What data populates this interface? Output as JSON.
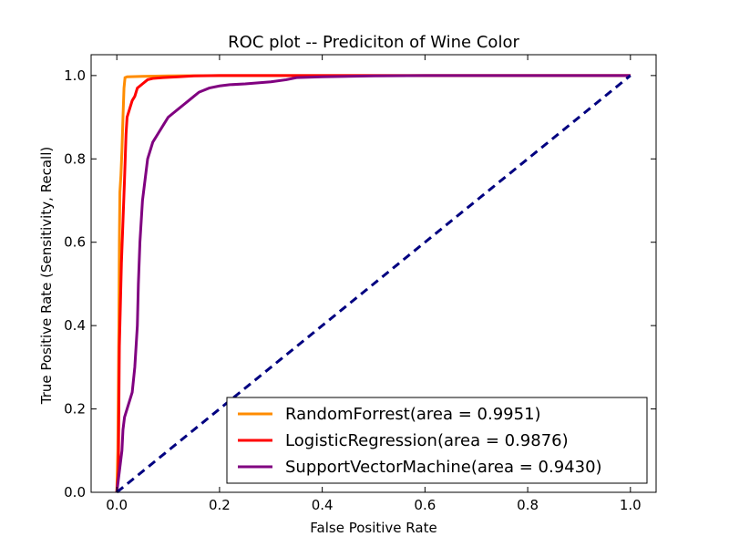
{
  "chart_data": {
    "type": "line",
    "title": "ROC plot -- Prediciton of Wine Color",
    "xlabel": "False Positive Rate",
    "ylabel": "True Positive Rate (Sensitivity, Recall)",
    "xlim": [
      -0.05,
      1.05
    ],
    "ylim": [
      0.0,
      1.05
    ],
    "xticks": [
      "0.0",
      "0.2",
      "0.4",
      "0.6",
      "0.8",
      "1.0"
    ],
    "yticks": [
      "0.0",
      "0.2",
      "0.4",
      "0.6",
      "0.8",
      "1.0"
    ],
    "grid": false,
    "legend_position": "lower-right",
    "series": [
      {
        "name": "RandomForrest(area = 0.9951)",
        "color": "#ff8c00",
        "style": "solid",
        "x": [
          0.0,
          0.002,
          0.004,
          0.005,
          0.006,
          0.008,
          0.01,
          0.012,
          0.014,
          0.016,
          0.02,
          0.05,
          0.1,
          0.2,
          0.4,
          1.0
        ],
        "y": [
          0.0,
          0.1,
          0.4,
          0.6,
          0.72,
          0.76,
          0.82,
          0.9,
          0.97,
          0.995,
          0.997,
          0.998,
          0.999,
          1.0,
          1.0,
          1.0
        ]
      },
      {
        "name": "LogisticRegression(area = 0.9876)",
        "color": "#ff0000",
        "style": "solid",
        "x": [
          0.0,
          0.003,
          0.005,
          0.007,
          0.009,
          0.012,
          0.015,
          0.018,
          0.02,
          0.025,
          0.03,
          0.035,
          0.04,
          0.05,
          0.06,
          0.07,
          0.09,
          0.12,
          0.15,
          0.2,
          0.3,
          0.4,
          0.6,
          1.0
        ],
        "y": [
          0.0,
          0.05,
          0.35,
          0.45,
          0.55,
          0.65,
          0.75,
          0.86,
          0.9,
          0.92,
          0.94,
          0.95,
          0.97,
          0.98,
          0.99,
          0.993,
          0.995,
          0.997,
          0.999,
          1.0,
          1.0,
          1.0,
          1.0,
          1.0
        ]
      },
      {
        "name": "SupportVectorMachine(area = 0.9430)",
        "color": "#800080",
        "style": "solid",
        "x": [
          0.0,
          0.005,
          0.01,
          0.012,
          0.015,
          0.02,
          0.025,
          0.03,
          0.035,
          0.04,
          0.042,
          0.045,
          0.05,
          0.055,
          0.06,
          0.065,
          0.07,
          0.075,
          0.08,
          0.09,
          0.1,
          0.11,
          0.12,
          0.13,
          0.14,
          0.15,
          0.16,
          0.18,
          0.2,
          0.22,
          0.25,
          0.3,
          0.33,
          0.35,
          0.4,
          0.5,
          0.6,
          1.0
        ],
        "y": [
          0.0,
          0.05,
          0.1,
          0.15,
          0.18,
          0.2,
          0.22,
          0.24,
          0.3,
          0.4,
          0.5,
          0.6,
          0.7,
          0.75,
          0.8,
          0.82,
          0.84,
          0.85,
          0.86,
          0.88,
          0.9,
          0.91,
          0.92,
          0.93,
          0.94,
          0.95,
          0.96,
          0.97,
          0.975,
          0.978,
          0.98,
          0.985,
          0.99,
          0.995,
          0.997,
          0.999,
          1.0,
          1.0
        ]
      },
      {
        "name": "",
        "color": "#000080",
        "style": "dashed",
        "x": [
          0.0,
          1.0
        ],
        "y": [
          0.0,
          1.0
        ]
      }
    ],
    "legend": [
      {
        "label": "RandomForrest(area = 0.9951)",
        "color": "#ff8c00"
      },
      {
        "label": "LogisticRegression(area = 0.9876)",
        "color": "#ff0000"
      },
      {
        "label": "SupportVectorMachine(area = 0.9430)",
        "color": "#800080"
      }
    ]
  }
}
